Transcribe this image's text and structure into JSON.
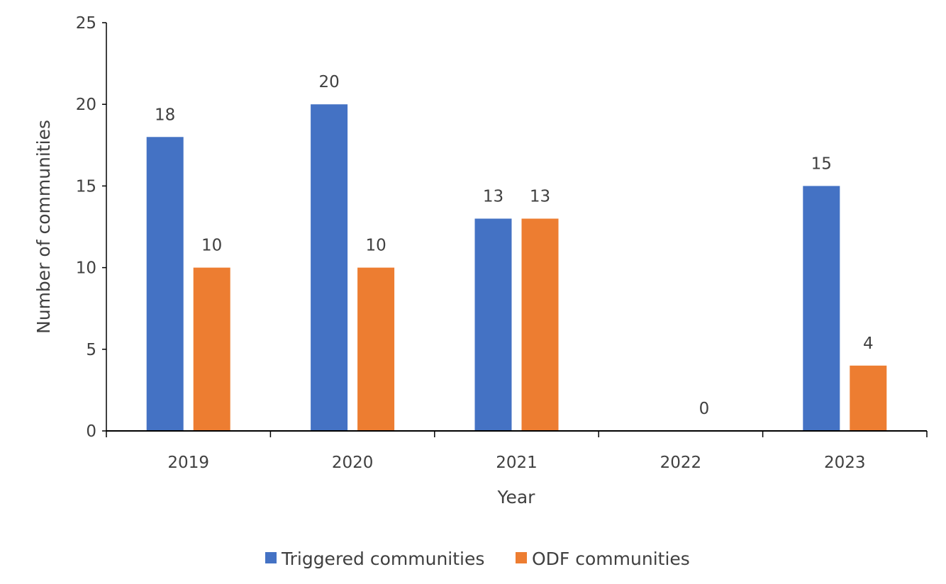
{
  "chart_data": {
    "type": "bar",
    "title": "",
    "xlabel": "Year",
    "ylabel": "Number of communities",
    "categories": [
      "2019",
      "2020",
      "2021",
      "2022",
      "2023"
    ],
    "ylim": [
      0,
      25
    ],
    "yticks": [
      0,
      5,
      10,
      15,
      20,
      25
    ],
    "grid": false,
    "legend": "bottom",
    "series": [
      {
        "name": "Triggered communities",
        "color": "#4472C4",
        "values": [
          18,
          20,
          13,
          null,
          15
        ]
      },
      {
        "name": "ODF communities",
        "color": "#ED7D31",
        "values": [
          10,
          10,
          13,
          0,
          4
        ]
      }
    ]
  }
}
